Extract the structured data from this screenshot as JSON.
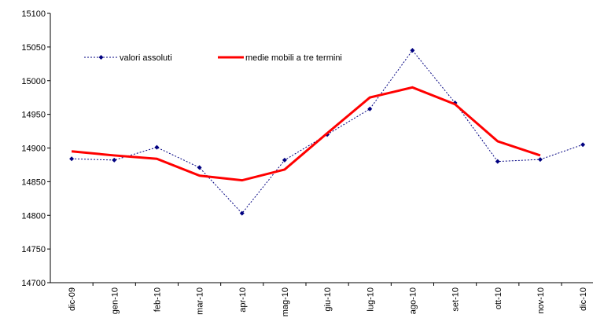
{
  "chart_data": {
    "type": "line",
    "categories": [
      "dic-09",
      "gen-10",
      "feb-10",
      "mar-10",
      "apr-10",
      "mag-10",
      "giu-10",
      "lug-10",
      "ago-10",
      "set-10",
      "ott-10",
      "nov-10",
      "dic-10"
    ],
    "series": [
      {
        "name": "valori assoluti",
        "color": "#000080",
        "style": "dotted-markers",
        "values": [
          14884,
          14882,
          14901,
          14871,
          14803,
          14882,
          14920,
          14958,
          15045,
          14967,
          14880,
          14883,
          14905
        ]
      },
      {
        "name": "medie mobili a tre termini",
        "color": "#ff0000",
        "style": "thick",
        "values": [
          14895,
          14889,
          14884,
          14859,
          14852,
          14868,
          14922,
          14975,
          14990,
          14965,
          14910,
          14889,
          null
        ]
      }
    ],
    "ylim": [
      14700,
      15100
    ],
    "yticks": [
      14700,
      14750,
      14800,
      14850,
      14900,
      14950,
      15000,
      15050,
      15100
    ],
    "grid": false,
    "legend": "top"
  }
}
